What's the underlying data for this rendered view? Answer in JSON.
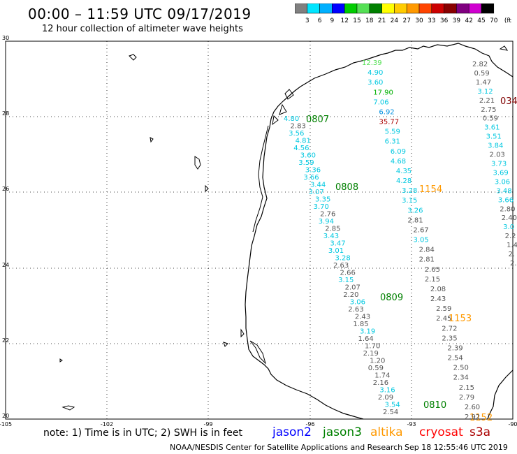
{
  "header": {
    "title": "00:00 – 11:59 UTC 09/17/2019",
    "subtitle": "12 hour collection of altimeter wave heights"
  },
  "scale": {
    "labels": [
      "3",
      "6",
      "9",
      "12",
      "15",
      "18",
      "21",
      "24",
      "27",
      "30",
      "33",
      "36",
      "39",
      "42",
      "45",
      "70",
      "(ft)"
    ],
    "colors": [
      "#808080",
      "#00e5ff",
      "#00b0ff",
      "#0000ff",
      "#00cc00",
      "#55e055",
      "#008000",
      "#ffff00",
      "#ffcc00",
      "#ff9900",
      "#ff4400",
      "#cc0000",
      "#880000",
      "#800080",
      "#d000d0",
      "#000000"
    ]
  },
  "map": {
    "lat_labels": [
      "30",
      "28",
      "26",
      "24",
      "22",
      "20"
    ],
    "lon_labels": [
      "-105",
      "-102",
      "-99",
      "-96",
      "-93",
      "-90"
    ]
  },
  "annotations": [
    {
      "text": "0807",
      "color": "#008000"
    },
    {
      "text": "0808",
      "color": "#008000"
    },
    {
      "text": "0809",
      "color": "#008000"
    },
    {
      "text": "0810",
      "color": "#008000"
    },
    {
      "text": "1154",
      "color": "#ff9900"
    },
    {
      "text": "1153",
      "color": "#ff9900"
    },
    {
      "text": "1152",
      "color": "#ff9900"
    },
    {
      "text": "034",
      "color": "#800000"
    }
  ],
  "readings": [
    {
      "v": "4.80",
      "c": "#00c8e0"
    },
    {
      "v": "2.83",
      "c": "#555555"
    },
    {
      "v": "3.56",
      "c": "#00c8e0"
    },
    {
      "v": "4.81",
      "c": "#00c8e0"
    },
    {
      "v": "4.56",
      "c": "#00c8e0"
    },
    {
      "v": "3.60",
      "c": "#00c8e0"
    },
    {
      "v": "3.59",
      "c": "#00c8e0"
    },
    {
      "v": "3.36",
      "c": "#00c8e0"
    },
    {
      "v": "3.66",
      "c": "#00c8e0"
    },
    {
      "v": "3.44",
      "c": "#00c8e0"
    },
    {
      "v": "3.07",
      "c": "#00c8e0"
    },
    {
      "v": "3.35",
      "c": "#00c8e0"
    },
    {
      "v": "3.70",
      "c": "#00c8e0"
    },
    {
      "v": "2.76",
      "c": "#555555"
    },
    {
      "v": "3.94",
      "c": "#00c8e0"
    },
    {
      "v": "2.85",
      "c": "#555555"
    },
    {
      "v": "3.43",
      "c": "#00c8e0"
    },
    {
      "v": "3.47",
      "c": "#00c8e0"
    },
    {
      "v": "3.01",
      "c": "#00c8e0"
    },
    {
      "v": "3.28",
      "c": "#00c8e0"
    },
    {
      "v": "2.63",
      "c": "#555555"
    },
    {
      "v": "2.66",
      "c": "#555555"
    },
    {
      "v": "3.15",
      "c": "#00c8e0"
    },
    {
      "v": "2.07",
      "c": "#555555"
    },
    {
      "v": "2.20",
      "c": "#555555"
    },
    {
      "v": "3.06",
      "c": "#00c8e0"
    },
    {
      "v": "2.63",
      "c": "#555555"
    },
    {
      "v": "2.43",
      "c": "#555555"
    },
    {
      "v": "1.85",
      "c": "#555555"
    },
    {
      "v": "3.19",
      "c": "#00c8e0"
    },
    {
      "v": "1.64",
      "c": "#555555"
    },
    {
      "v": "1.70",
      "c": "#555555"
    },
    {
      "v": "2.19",
      "c": "#555555"
    },
    {
      "v": "1.20",
      "c": "#555555"
    },
    {
      "v": "0.59",
      "c": "#555555"
    },
    {
      "v": "1.74",
      "c": "#555555"
    },
    {
      "v": "2.16",
      "c": "#555555"
    },
    {
      "v": "3.16",
      "c": "#00c8e0"
    },
    {
      "v": "2.09",
      "c": "#555555"
    },
    {
      "v": "3.54",
      "c": "#00c8e0"
    },
    {
      "v": "2.54",
      "c": "#555555"
    },
    {
      "v": "12.39",
      "c": "#55e055"
    },
    {
      "v": "4.90",
      "c": "#00c8e0"
    },
    {
      "v": "3.60",
      "c": "#00c8e0"
    },
    {
      "v": "17.90",
      "c": "#00b000"
    },
    {
      "v": "7.06",
      "c": "#00c8e0"
    },
    {
      "v": "6.92",
      "c": "#0090e0"
    },
    {
      "v": "35.77",
      "c": "#aa0000"
    },
    {
      "v": "5.59",
      "c": "#00c8e0"
    },
    {
      "v": "6.31",
      "c": "#00c8e0"
    },
    {
      "v": "6.09",
      "c": "#00c8e0"
    },
    {
      "v": "4.68",
      "c": "#00c8e0"
    },
    {
      "v": "4.35",
      "c": "#00c8e0"
    },
    {
      "v": "4.28",
      "c": "#00c8e0"
    },
    {
      "v": "3.28",
      "c": "#00c8e0"
    },
    {
      "v": "3.15",
      "c": "#00c8e0"
    },
    {
      "v": "3.26",
      "c": "#00c8e0"
    },
    {
      "v": "2.81",
      "c": "#555555"
    },
    {
      "v": "2.67",
      "c": "#555555"
    },
    {
      "v": "3.05",
      "c": "#00c8e0"
    },
    {
      "v": "2.84",
      "c": "#555555"
    },
    {
      "v": "2.81",
      "c": "#555555"
    },
    {
      "v": "2.65",
      "c": "#555555"
    },
    {
      "v": "2.15",
      "c": "#555555"
    },
    {
      "v": "2.08",
      "c": "#555555"
    },
    {
      "v": "2.43",
      "c": "#555555"
    },
    {
      "v": "2.59",
      "c": "#555555"
    },
    {
      "v": "2.45",
      "c": "#555555"
    },
    {
      "v": "2.72",
      "c": "#555555"
    },
    {
      "v": "2.35",
      "c": "#555555"
    },
    {
      "v": "2.39",
      "c": "#555555"
    },
    {
      "v": "2.54",
      "c": "#555555"
    },
    {
      "v": "2.50",
      "c": "#555555"
    },
    {
      "v": "2.34",
      "c": "#555555"
    },
    {
      "v": "2.15",
      "c": "#555555"
    },
    {
      "v": "2.79",
      "c": "#555555"
    },
    {
      "v": "2.60",
      "c": "#555555"
    },
    {
      "v": "2.92",
      "c": "#555555"
    },
    {
      "v": "2.82",
      "c": "#555555"
    },
    {
      "v": "0.59",
      "c": "#555555"
    },
    {
      "v": "1.47",
      "c": "#555555"
    },
    {
      "v": "3.12",
      "c": "#00c8e0"
    },
    {
      "v": "2.21",
      "c": "#555555"
    },
    {
      "v": "2.75",
      "c": "#555555"
    },
    {
      "v": "0.59",
      "c": "#555555"
    },
    {
      "v": "3.61",
      "c": "#00c8e0"
    },
    {
      "v": "3.51",
      "c": "#00c8e0"
    },
    {
      "v": "3.84",
      "c": "#00c8e0"
    },
    {
      "v": "2.03",
      "c": "#555555"
    },
    {
      "v": "3.73",
      "c": "#00c8e0"
    },
    {
      "v": "3.69",
      "c": "#00c8e0"
    },
    {
      "v": "3.06",
      "c": "#00c8e0"
    },
    {
      "v": "3.48",
      "c": "#00c8e0"
    },
    {
      "v": "3.66",
      "c": "#00c8e0"
    },
    {
      "v": "2.80",
      "c": "#555555"
    },
    {
      "v": "2.40",
      "c": "#555555"
    },
    {
      "v": "3.0",
      "c": "#00c8e0"
    },
    {
      "v": "2.2",
      "c": "#555555"
    },
    {
      "v": "1.4",
      "c": "#555555"
    },
    {
      "v": "2.",
      "c": "#555555"
    },
    {
      "v": "2.",
      "c": "#555555"
    }
  ],
  "footer": {
    "note": "note: 1) Time is in UTC; 2) SWH is in feet",
    "satellites": [
      {
        "name": "jason2",
        "color": "#0000ff"
      },
      {
        "name": "jason3",
        "color": "#008000"
      },
      {
        "name": "altika",
        "color": "#ff9900"
      },
      {
        "name": "cryosat",
        "color": "#ff0000"
      },
      {
        "name": "s3a",
        "color": "#aa0000"
      }
    ],
    "credit": "NOAA/NESDIS Center for Satellite Applications and Research",
    "timestamp": "Sep 18 12:55:46 UTC 2019"
  }
}
